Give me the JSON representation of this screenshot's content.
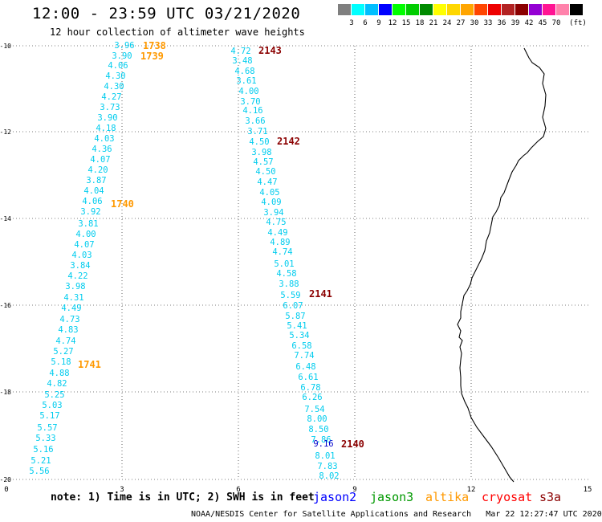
{
  "header": {
    "title": "12:00 - 23:59 UTC 03/21/2020",
    "subtitle": "12 hour collection of altimeter wave heights"
  },
  "colorbar": {
    "colors": [
      "#7f7f7f",
      "#00ffff",
      "#00bfff",
      "#0000ff",
      "#00ff00",
      "#00cd00",
      "#008b00",
      "#ffff00",
      "#ffd700",
      "#ffa500",
      "#ff4500",
      "#ee0000",
      "#b22222",
      "#8b0000",
      "#9400d3",
      "#ff1493",
      "#ff82ab",
      "#000000"
    ],
    "labels": [
      "3",
      "6",
      "9",
      "12",
      "15",
      "18",
      "21",
      "24",
      "27",
      "30",
      "33",
      "36",
      "39",
      "42",
      "45",
      "70",
      "(ft)"
    ]
  },
  "axes": {
    "x_ticks": [
      "0",
      "3",
      "6",
      "9",
      "12",
      "15"
    ],
    "y_ticks": [
      "-10",
      "-12",
      "-14",
      "-16",
      "-18",
      "-20"
    ]
  },
  "passes": [
    {
      "label": "1738",
      "color": "#ff9900"
    },
    {
      "label": "1739",
      "color": "#ff9900"
    },
    {
      "label": "1740",
      "color": "#ff9900"
    },
    {
      "label": "1741",
      "color": "#ff9900"
    },
    {
      "label": "2143",
      "color": "#8b0000"
    },
    {
      "label": "2142",
      "color": "#8b0000"
    },
    {
      "label": "2141",
      "color": "#8b0000"
    },
    {
      "label": "2140",
      "color": "#8b0000"
    }
  ],
  "track_a": [
    "3.96",
    "3.90",
    "4.06",
    "4.30",
    "4.30",
    "4.27",
    "3.73",
    "3.90",
    "4.18",
    "4.03",
    "4.36",
    "4.07",
    "4.20",
    "3.87",
    "4.04",
    "4.06",
    "3.92",
    "3.81",
    "4.00",
    "4.07",
    "4.03",
    "3.84",
    "4.22",
    "3.98",
    "4.31",
    "4.49",
    "4.73",
    "4.83",
    "4.74",
    "5.27",
    "5.18",
    "4.88",
    "4.82",
    "5.25",
    "5.03",
    "5.17",
    "5.57",
    "5.33",
    "5.16",
    "5.21",
    "5.56"
  ],
  "track_b": [
    "4.72",
    "3.48",
    "4.68",
    "3.61",
    "4.00",
    "3.70",
    "4.16",
    "3.66",
    "3.71",
    "4.50",
    "3.98",
    "4.57",
    "4.50",
    "4.47",
    "4.05",
    "4.09",
    "3.94",
    "4.75",
    "4.49",
    "4.89",
    "4.74",
    "5.01",
    "4.58",
    "3.88",
    "5.59",
    "6.07",
    "5.87",
    "5.41",
    "5.34",
    "6.58",
    "7.74",
    "6.48",
    "6.61",
    "6.78",
    "6.26",
    "7.54",
    "8.00",
    "8.50",
    "7.86",
    "9.16",
    "8.01",
    "7.83",
    "8.02"
  ],
  "track_a_color": "#00ccee",
  "track_b_color": "#00ccee",
  "highlight_value": "9.16",
  "note": "note: 1) Time is in UTC; 2) SWH is in feet",
  "satellites": [
    {
      "name": "jason2",
      "color": "#0000ff"
    },
    {
      "name": "jason3",
      "color": "#009900"
    },
    {
      "name": "altika",
      "color": "#ff9900"
    },
    {
      "name": "cryosat",
      "color": "#ff0000"
    },
    {
      "name": "s3a",
      "color": "#8b0000"
    }
  ],
  "footer": "NOAA/NESDIS Center for Satellite Applications and Research   Mar 22 12:27:47 UTC 2020"
}
